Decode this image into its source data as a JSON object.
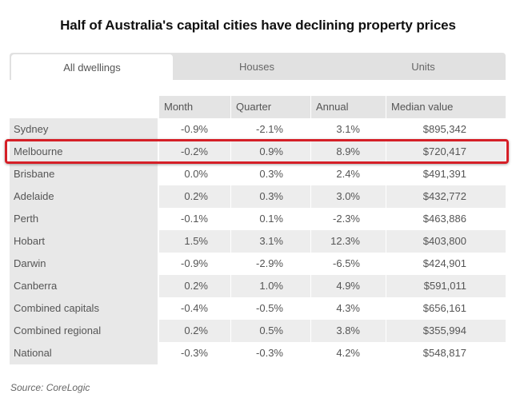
{
  "title": "Half of Australia's capital cities have declining property prices",
  "tabs": [
    {
      "label": "All dwellings"
    },
    {
      "label": "Houses"
    },
    {
      "label": "Units"
    }
  ],
  "table": {
    "headers": [
      "Month",
      "Quarter",
      "Annual",
      "Median value"
    ],
    "rows": [
      {
        "name": "Sydney",
        "month": "-0.9%",
        "quarter": "-2.1%",
        "annual": "3.1%",
        "median": "$895,342"
      },
      {
        "name": "Melbourne",
        "month": "-0.2%",
        "quarter": "0.9%",
        "annual": "8.9%",
        "median": "$720,417"
      },
      {
        "name": "Brisbane",
        "month": "0.0%",
        "quarter": "0.3%",
        "annual": "2.4%",
        "median": "$491,391"
      },
      {
        "name": "Adelaide",
        "month": "0.2%",
        "quarter": "0.3%",
        "annual": "3.0%",
        "median": "$432,772"
      },
      {
        "name": "Perth",
        "month": "-0.1%",
        "quarter": "0.1%",
        "annual": "-2.3%",
        "median": "$463,886"
      },
      {
        "name": "Hobart",
        "month": "1.5%",
        "quarter": "3.1%",
        "annual": "12.3%",
        "median": "$403,800"
      },
      {
        "name": "Darwin",
        "month": "-0.9%",
        "quarter": "-2.9%",
        "annual": "-6.5%",
        "median": "$424,901"
      },
      {
        "name": "Canberra",
        "month": "0.2%",
        "quarter": "1.0%",
        "annual": "4.9%",
        "median": "$591,011"
      },
      {
        "name": "Combined capitals",
        "month": "-0.4%",
        "quarter": "-0.5%",
        "annual": "4.3%",
        "median": "$656,161"
      },
      {
        "name": "Combined regional",
        "month": "0.2%",
        "quarter": "0.5%",
        "annual": "3.8%",
        "median": "$355,994"
      },
      {
        "name": "National",
        "month": "-0.3%",
        "quarter": "-0.3%",
        "annual": "4.2%",
        "median": "$548,817"
      }
    ]
  },
  "source": "Source: CoreLogic",
  "colors": {
    "highlight": "#d51f27",
    "tab_bar": "#e1e1e1",
    "row_shade": "#ededed"
  }
}
